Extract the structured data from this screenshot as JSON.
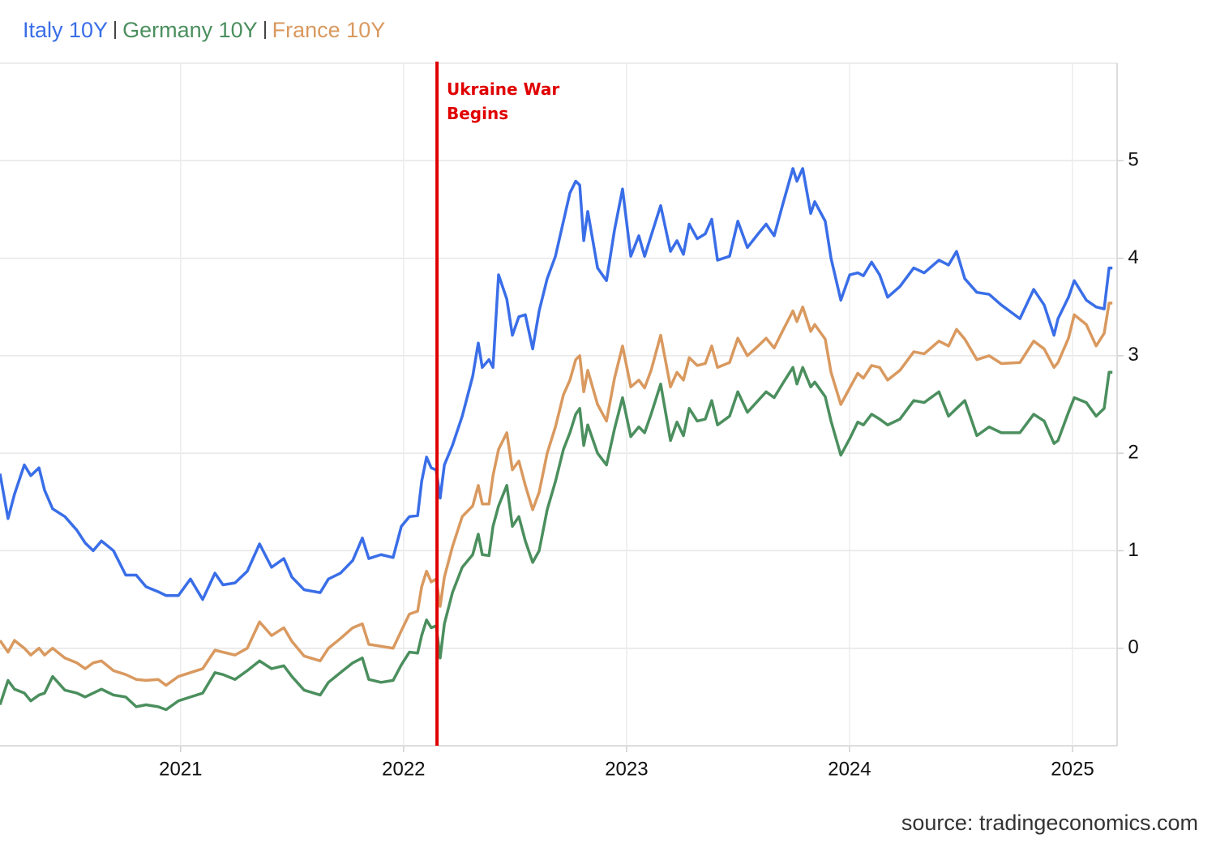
{
  "chart_data": {
    "type": "line",
    "source": "source: tradingeconomics.com",
    "annotation": {
      "text": "Ukraine War Begins",
      "x": 2022.15,
      "color": "#e00000"
    },
    "xlim": [
      2020.19,
      2025.2
    ],
    "xticks": [
      2021,
      2022,
      2023,
      2024,
      2025
    ],
    "ylim": [
      -1,
      6
    ],
    "yticks": [
      0,
      1,
      2,
      3,
      4,
      5
    ],
    "grid": true,
    "x": [
      2020.19,
      2020.226,
      2020.255,
      2020.299,
      2020.328,
      2020.365,
      2020.39,
      2020.426,
      2020.481,
      2020.535,
      2020.572,
      2020.608,
      2020.645,
      2020.699,
      2020.754,
      2020.801,
      2020.845,
      2020.899,
      2020.935,
      2020.99,
      2021.044,
      2021.099,
      2021.154,
      2021.19,
      2021.244,
      2021.299,
      2021.354,
      2021.408,
      2021.463,
      2021.499,
      2021.554,
      2021.626,
      2021.663,
      2021.717,
      2021.772,
      2021.815,
      2021.844,
      2021.899,
      2021.953,
      2021.99,
      2022.026,
      2022.063,
      2022.081,
      2022.103,
      2022.124,
      2022.146,
      2022.164,
      2022.183,
      2022.219,
      2022.263,
      2022.31,
      2022.335,
      2022.353,
      2022.383,
      2022.401,
      2022.426,
      2022.463,
      2022.488,
      2022.517,
      2022.546,
      2022.579,
      2022.608,
      2022.644,
      2022.681,
      2022.717,
      2022.746,
      2022.772,
      2022.79,
      2022.808,
      2022.826,
      2022.87,
      2022.91,
      2022.946,
      2022.982,
      2023.019,
      2023.055,
      2023.081,
      2023.11,
      2023.153,
      2023.197,
      2023.226,
      2023.255,
      2023.281,
      2023.317,
      2023.353,
      2023.382,
      2023.408,
      2023.462,
      2023.499,
      2023.542,
      2023.59,
      2023.626,
      2023.662,
      2023.699,
      2023.746,
      2023.764,
      2023.79,
      2023.826,
      2023.844,
      2023.891,
      2023.917,
      2023.961,
      2024.001,
      2024.037,
      2024.062,
      2024.099,
      2024.135,
      2024.171,
      2024.226,
      2024.288,
      2024.335,
      2024.401,
      2024.444,
      2024.48,
      2024.517,
      2024.571,
      2024.626,
      2024.681,
      2024.764,
      2024.826,
      2024.873,
      2024.917,
      2024.935,
      2024.982,
      2025.008,
      2025.062,
      2025.106,
      2025.142,
      2025.164,
      2025.179
    ],
    "series": [
      {
        "name": "Italy 10Y",
        "color": "#3a6ee8",
        "values": [
          1.79,
          1.33,
          1.58,
          1.88,
          1.77,
          1.85,
          1.62,
          1.43,
          1.35,
          1.21,
          1.08,
          1.0,
          1.1,
          1.0,
          0.75,
          0.75,
          0.63,
          0.58,
          0.54,
          0.54,
          0.71,
          0.5,
          0.77,
          0.65,
          0.67,
          0.79,
          1.07,
          0.83,
          0.92,
          0.73,
          0.6,
          0.57,
          0.71,
          0.77,
          0.9,
          1.13,
          0.92,
          0.96,
          0.93,
          1.25,
          1.35,
          1.36,
          1.71,
          1.96,
          1.85,
          1.83,
          1.54,
          1.88,
          2.08,
          2.38,
          2.79,
          3.13,
          2.88,
          2.96,
          2.88,
          3.83,
          3.58,
          3.21,
          3.4,
          3.42,
          3.07,
          3.46,
          3.79,
          4.02,
          4.38,
          4.67,
          4.79,
          4.75,
          4.18,
          4.48,
          3.9,
          3.77,
          4.29,
          4.71,
          4.02,
          4.23,
          4.02,
          4.23,
          4.54,
          4.07,
          4.18,
          4.04,
          4.35,
          4.2,
          4.25,
          4.4,
          3.98,
          4.02,
          4.38,
          4.11,
          4.25,
          4.35,
          4.23,
          4.54,
          4.92,
          4.79,
          4.92,
          4.46,
          4.58,
          4.38,
          4.0,
          3.57,
          3.83,
          3.85,
          3.82,
          3.96,
          3.83,
          3.6,
          3.71,
          3.9,
          3.85,
          3.98,
          3.93,
          4.07,
          3.79,
          3.65,
          3.63,
          3.52,
          3.38,
          3.68,
          3.52,
          3.21,
          3.38,
          3.6,
          3.77,
          3.57,
          3.5,
          3.48,
          3.9,
          3.9
        ]
      },
      {
        "name": "Germany 10Y",
        "color": "#4b8f5e",
        "values": [
          -0.58,
          -0.33,
          -0.42,
          -0.46,
          -0.54,
          -0.48,
          -0.46,
          -0.29,
          -0.43,
          -0.46,
          -0.5,
          -0.46,
          -0.42,
          -0.48,
          -0.5,
          -0.6,
          -0.58,
          -0.6,
          -0.63,
          -0.54,
          -0.5,
          -0.46,
          -0.25,
          -0.27,
          -0.32,
          -0.23,
          -0.13,
          -0.21,
          -0.18,
          -0.29,
          -0.43,
          -0.48,
          -0.35,
          -0.25,
          -0.15,
          -0.1,
          -0.32,
          -0.35,
          -0.33,
          -0.17,
          -0.04,
          -0.05,
          0.13,
          0.29,
          0.21,
          0.23,
          -0.1,
          0.25,
          0.57,
          0.83,
          0.96,
          1.17,
          0.96,
          0.95,
          1.25,
          1.46,
          1.67,
          1.25,
          1.35,
          1.1,
          0.88,
          1.0,
          1.42,
          1.71,
          2.04,
          2.21,
          2.4,
          2.46,
          2.08,
          2.29,
          2.0,
          1.88,
          2.25,
          2.57,
          2.17,
          2.27,
          2.21,
          2.4,
          2.71,
          2.13,
          2.32,
          2.18,
          2.46,
          2.33,
          2.35,
          2.54,
          2.29,
          2.38,
          2.63,
          2.42,
          2.54,
          2.63,
          2.57,
          2.71,
          2.88,
          2.71,
          2.88,
          2.68,
          2.73,
          2.58,
          2.33,
          1.98,
          2.15,
          2.32,
          2.29,
          2.4,
          2.35,
          2.29,
          2.35,
          2.54,
          2.52,
          2.63,
          2.38,
          2.46,
          2.54,
          2.18,
          2.27,
          2.21,
          2.21,
          2.4,
          2.33,
          2.1,
          2.13,
          2.42,
          2.57,
          2.52,
          2.38,
          2.46,
          2.83,
          2.83
        ]
      },
      {
        "name": "France 10Y",
        "color": "#d9995f",
        "values": [
          0.08,
          -0.04,
          0.08,
          0.0,
          -0.07,
          0.0,
          -0.07,
          0.0,
          -0.1,
          -0.15,
          -0.21,
          -0.15,
          -0.13,
          -0.23,
          -0.27,
          -0.32,
          -0.33,
          -0.32,
          -0.38,
          -0.29,
          -0.25,
          -0.21,
          -0.02,
          -0.04,
          -0.07,
          0.0,
          0.27,
          0.13,
          0.21,
          0.07,
          -0.08,
          -0.13,
          0.0,
          0.1,
          0.21,
          0.25,
          0.04,
          0.02,
          0.0,
          0.18,
          0.35,
          0.38,
          0.63,
          0.79,
          0.68,
          0.71,
          0.43,
          0.73,
          1.04,
          1.35,
          1.46,
          1.67,
          1.48,
          1.48,
          1.77,
          2.04,
          2.21,
          1.83,
          1.92,
          1.67,
          1.42,
          1.6,
          2.0,
          2.27,
          2.6,
          2.75,
          2.96,
          3.0,
          2.63,
          2.85,
          2.5,
          2.33,
          2.77,
          3.1,
          2.68,
          2.75,
          2.67,
          2.85,
          3.21,
          2.68,
          2.83,
          2.75,
          2.98,
          2.9,
          2.92,
          3.1,
          2.88,
          2.93,
          3.18,
          3.0,
          3.1,
          3.18,
          3.08,
          3.25,
          3.46,
          3.35,
          3.5,
          3.25,
          3.32,
          3.17,
          2.83,
          2.5,
          2.67,
          2.82,
          2.77,
          2.9,
          2.88,
          2.75,
          2.85,
          3.04,
          3.02,
          3.15,
          3.1,
          3.27,
          3.17,
          2.96,
          3.0,
          2.92,
          2.93,
          3.15,
          3.07,
          2.88,
          2.93,
          3.18,
          3.42,
          3.32,
          3.1,
          3.23,
          3.54,
          3.54
        ]
      }
    ]
  }
}
